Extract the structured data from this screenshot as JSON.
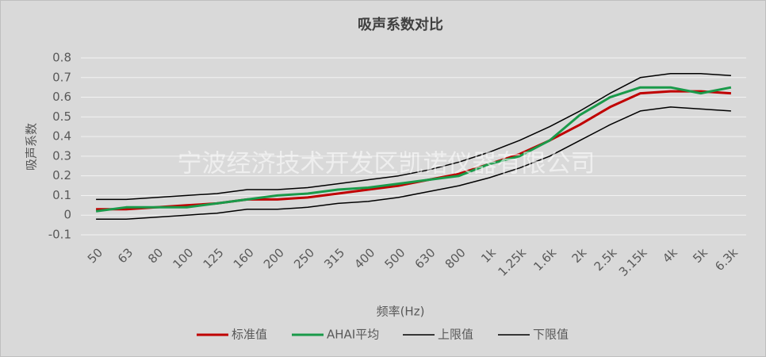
{
  "chart_data": {
    "type": "line",
    "title": "吸声系数对比",
    "x_label": "频率(Hz)",
    "y_label": "吸声系数",
    "watermark": "宁波经济技术开发区凯诺仪器有限公司",
    "categories": [
      "50",
      "63",
      "80",
      "100",
      "125",
      "160",
      "200",
      "250",
      "315",
      "400",
      "500",
      "630",
      "800",
      "1k",
      "1.25k",
      "1.6k",
      "2k",
      "2.5k",
      "3.15k",
      "4k",
      "5k",
      "6.3k"
    ],
    "series": [
      {
        "name": "标准值",
        "color": "#c00000",
        "values": [
          0.03,
          0.03,
          0.04,
          0.05,
          0.06,
          0.08,
          0.08,
          0.09,
          0.11,
          0.13,
          0.15,
          0.18,
          0.21,
          0.26,
          0.31,
          0.38,
          0.46,
          0.55,
          0.62,
          0.63,
          0.63,
          0.62
        ]
      },
      {
        "name": "AHAI平均",
        "color": "#1a9a4a",
        "values": [
          0.02,
          0.04,
          0.04,
          0.04,
          0.06,
          0.08,
          0.1,
          0.11,
          0.13,
          0.14,
          0.16,
          0.18,
          0.2,
          0.26,
          0.3,
          0.38,
          0.51,
          0.6,
          0.65,
          0.65,
          0.62,
          0.65
        ]
      },
      {
        "name": "上限值",
        "color": "#000000",
        "values": [
          0.08,
          0.08,
          0.09,
          0.1,
          0.11,
          0.13,
          0.13,
          0.14,
          0.16,
          0.18,
          0.2,
          0.23,
          0.27,
          0.32,
          0.38,
          0.45,
          0.53,
          0.62,
          0.7,
          0.72,
          0.72,
          0.71
        ]
      },
      {
        "name": "下限值",
        "color": "#000000",
        "values": [
          -0.02,
          -0.02,
          -0.01,
          0,
          0.01,
          0.03,
          0.03,
          0.04,
          0.06,
          0.07,
          0.09,
          0.12,
          0.15,
          0.19,
          0.24,
          0.3,
          0.38,
          0.46,
          0.53,
          0.55,
          0.54,
          0.53
        ]
      }
    ],
    "ylim": [
      -0.1,
      0.8
    ],
    "yticks": [
      -0.1,
      0,
      0.1,
      0.2,
      0.3,
      0.4,
      0.5,
      0.6,
      0.7,
      0.8
    ],
    "grid": true,
    "legend": "bottom"
  }
}
